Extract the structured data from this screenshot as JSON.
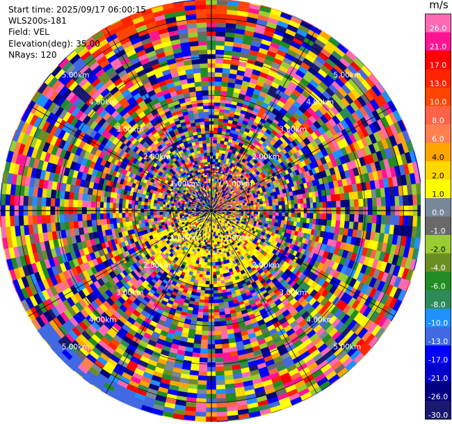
{
  "header": {
    "start_time": "Start time: 2025/09/17 06:00:15",
    "instrument": "WLS200s-181",
    "field": "Field: VEL",
    "elevation": "Elevation(deg): 35.00",
    "nrays": "NRays: 120"
  },
  "chart_data": {
    "type": "heatmap",
    "projection": "polar",
    "field": "VEL",
    "elevation_deg": 35.0,
    "n_rays": 120,
    "range_rings_km": [
      1,
      2,
      3,
      4,
      5
    ],
    "range_ring_labels": [
      "1.00km",
      "2.00km",
      "3.00km",
      "4.00km",
      "5.00km"
    ],
    "max_range_km": 5.5,
    "grid": true,
    "colorbar": {
      "unit": "m/s",
      "ticks": [
        "26.0",
        "21.0",
        "17.0",
        "13.0",
        "10.0",
        "8.0",
        "6.0",
        "4.0",
        "2.0",
        "1.0",
        "0.0",
        "-1.0",
        "-2.0",
        "-4.0",
        "-6.0",
        "-8.0",
        "-10.0",
        "-13.0",
        "-17.0",
        "-21.0",
        "-26.0",
        "-30.0"
      ],
      "colors": [
        "#ff69b4",
        "#ff1493",
        "#ff0000",
        "#ff2400",
        "#ff4500",
        "#ff6347",
        "#ff7f50",
        "#ffa500",
        "#ffd700",
        "#ffff00",
        "#778899",
        "#696969",
        "#9acd32",
        "#6b8e23",
        "#228b22",
        "#2e8b57",
        "#1e90ff",
        "#4169e1",
        "#0000ff",
        "#0000cd",
        "#000080",
        "#191970"
      ]
    }
  }
}
